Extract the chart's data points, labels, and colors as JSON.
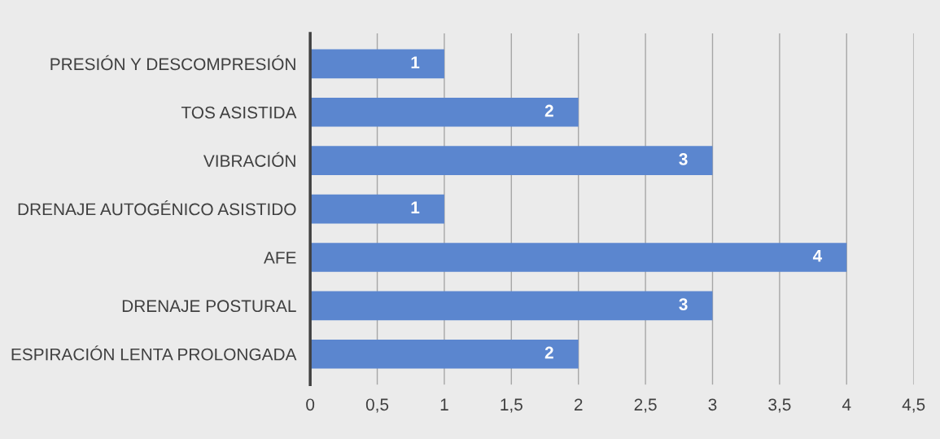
{
  "chart_data": {
    "type": "bar",
    "orientation": "horizontal",
    "categories": [
      "PRESIÓN Y DESCOMPRESIÓN",
      "TOS ASISTIDA",
      "VIBRACIÓN",
      "DRENAJE AUTOGÉNICO ASISTIDO",
      "AFE",
      "DRENAJE POSTURAL",
      "ESPIRACIÓN LENTA PROLONGADA"
    ],
    "values": [
      1,
      2,
      3,
      1,
      4,
      3,
      2
    ],
    "color": "#5b86cf",
    "data_labels": true,
    "xlim": [
      0,
      4.5
    ],
    "xticks": [
      0,
      {
        "value": 0.5,
        "label": "0,5"
      },
      1,
      {
        "value": 1.5,
        "label": "1,5"
      },
      2,
      {
        "value": 2.5,
        "label": "2,5"
      },
      3,
      {
        "value": 3.5,
        "label": "3,5"
      },
      4,
      {
        "value": 4.5,
        "label": "4,5"
      }
    ],
    "grid": "x",
    "legend": false
  }
}
